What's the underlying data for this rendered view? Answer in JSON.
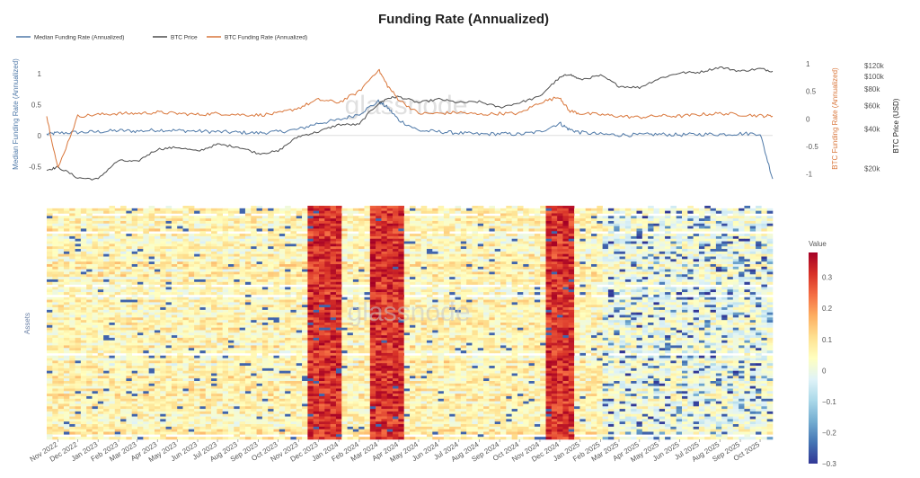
{
  "chart_data": [
    {
      "type": "line",
      "title": "Funding Rate (Annualized)",
      "watermark": "glassnode",
      "grid": false,
      "legend_placement": "top-left",
      "series": [
        {
          "name": "Median Funding Rate (Annualized)",
          "axis": "y_left",
          "color": "#4f79a8",
          "x": [
            "2022-10-15",
            "2022-11-01",
            "2022-12-01",
            "2023-01-01",
            "2023-02-01",
            "2023-03-01",
            "2023-04-01",
            "2023-05-01",
            "2023-06-01",
            "2023-07-01",
            "2023-08-01",
            "2023-09-01",
            "2023-10-01",
            "2023-11-01",
            "2023-12-01",
            "2024-01-01",
            "2024-02-01",
            "2024-03-01",
            "2024-03-15",
            "2024-04-01",
            "2024-05-01",
            "2024-06-01",
            "2024-07-01",
            "2024-08-01",
            "2024-09-01",
            "2024-10-01",
            "2024-11-01",
            "2024-12-01",
            "2024-12-15",
            "2025-01-01",
            "2025-02-01",
            "2025-03-01",
            "2025-04-01",
            "2025-05-01",
            "2025-06-01",
            "2025-07-01",
            "2025-08-01",
            "2025-09-01",
            "2025-10-01",
            "2025-10-20"
          ],
          "y": [
            0.02,
            0.04,
            0.05,
            0.06,
            0.08,
            0.07,
            0.09,
            0.08,
            0.07,
            0.06,
            0.05,
            0.04,
            0.06,
            0.1,
            0.2,
            0.25,
            0.35,
            0.55,
            0.45,
            0.25,
            0.08,
            0.06,
            0.04,
            0.02,
            0.03,
            0.02,
            0.06,
            0.2,
            0.1,
            0.05,
            0.02,
            0.01,
            0.01,
            0.02,
            0.01,
            0.02,
            0.02,
            0.03,
            0.03,
            -0.7
          ]
        },
        {
          "name": "BTC Price",
          "axis": "y_price",
          "color": "#4d4d4d",
          "x": [
            "2022-10-15",
            "2022-11-01",
            "2022-12-01",
            "2023-01-01",
            "2023-02-01",
            "2023-03-01",
            "2023-04-01",
            "2023-05-01",
            "2023-06-01",
            "2023-07-01",
            "2023-08-01",
            "2023-09-01",
            "2023-10-01",
            "2023-11-01",
            "2023-12-01",
            "2024-01-01",
            "2024-02-01",
            "2024-03-01",
            "2024-03-15",
            "2024-04-01",
            "2024-05-01",
            "2024-06-01",
            "2024-07-01",
            "2024-08-01",
            "2024-09-01",
            "2024-10-01",
            "2024-11-01",
            "2024-12-01",
            "2024-12-15",
            "2025-01-01",
            "2025-02-01",
            "2025-03-01",
            "2025-04-01",
            "2025-05-01",
            "2025-06-01",
            "2025-07-01",
            "2025-08-01",
            "2025-09-01",
            "2025-10-01",
            "2025-10-20"
          ],
          "y": [
            19500,
            20500,
            17000,
            16600,
            23000,
            22500,
            28000,
            29000,
            27000,
            30500,
            29200,
            26000,
            27000,
            35000,
            38000,
            43000,
            43000,
            62000,
            68000,
            70000,
            63000,
            67000,
            63000,
            64000,
            58000,
            63000,
            70000,
            97000,
            104000,
            94000,
            101000,
            84000,
            82000,
            96000,
            106000,
            107000,
            117000,
            109000,
            114000,
            109000
          ]
        },
        {
          "name": "BTC Funding Rate (Annualized)",
          "axis": "y_right",
          "color": "#d9763a",
          "x": [
            "2022-10-15",
            "2022-11-01",
            "2022-12-01",
            "2023-01-01",
            "2023-02-01",
            "2023-03-01",
            "2023-04-01",
            "2023-05-01",
            "2023-06-01",
            "2023-07-01",
            "2023-08-01",
            "2023-09-01",
            "2023-10-01",
            "2023-11-01",
            "2023-12-01",
            "2024-01-01",
            "2024-02-01",
            "2024-03-01",
            "2024-03-15",
            "2024-04-01",
            "2024-05-01",
            "2024-06-01",
            "2024-07-01",
            "2024-08-01",
            "2024-09-01",
            "2024-10-01",
            "2024-11-01",
            "2024-12-01",
            "2024-12-15",
            "2025-01-01",
            "2025-02-01",
            "2025-03-01",
            "2025-04-01",
            "2025-05-01",
            "2025-06-01",
            "2025-07-01",
            "2025-08-01",
            "2025-09-01",
            "2025-10-01",
            "2025-10-20"
          ],
          "y": [
            0.05,
            -0.9,
            0.05,
            0.08,
            0.1,
            0.1,
            0.12,
            0.1,
            0.08,
            0.1,
            0.08,
            0.07,
            0.1,
            0.2,
            0.35,
            0.3,
            0.5,
            0.9,
            0.6,
            0.35,
            0.1,
            0.1,
            0.12,
            0.08,
            0.1,
            0.1,
            0.3,
            0.4,
            0.15,
            0.1,
            0.08,
            0.05,
            0.03,
            0.06,
            0.05,
            0.08,
            0.1,
            0.08,
            0.06,
            0.05
          ]
        }
      ],
      "y_left": {
        "label": "Median Funding Rate (Annualized)",
        "ticks": [
          1,
          0.5,
          0,
          -0.5
        ],
        "range": [
          -0.8,
          1.2
        ]
      },
      "y_right": {
        "label": "BTC Funding Rate (Annualized)",
        "ticks": [
          1,
          0.5,
          0,
          -0.5,
          -1
        ],
        "range": [
          -1.2,
          1.05
        ]
      },
      "y_price": {
        "label": "BTC Price (USD)",
        "scale": "log",
        "ticks": [
          "$120k",
          "$100k",
          "$80k",
          "$60k",
          "$40k",
          "$20k"
        ],
        "tick_values": [
          120000,
          100000,
          80000,
          60000,
          40000,
          20000
        ],
        "range": [
          15000,
          130000
        ]
      }
    },
    {
      "type": "heatmap",
      "ylabel": "Assets",
      "x_range": [
        "2022-10-15",
        "2025-10-20"
      ],
      "x_ticks": [
        "Nov 2022",
        "Dec 2022",
        "Jan 2023",
        "Feb 2023",
        "Mar 2023",
        "Apr 2023",
        "May 2023",
        "Jun 2023",
        "Jul 2023",
        "Aug 2023",
        "Sep 2023",
        "Oct 2023",
        "Nov 2023",
        "Dec 2023",
        "Jan 2024",
        "Feb 2024",
        "Mar 2024",
        "Apr 2024",
        "May 2024",
        "Jun 2024",
        "Jul 2024",
        "Aug 2024",
        "Sep 2024",
        "Oct 2024",
        "Nov 2024",
        "Dec 2024",
        "Jan 2025",
        "Feb 2025",
        "Mar 2025",
        "Apr 2025",
        "May 2025",
        "Jun 2025",
        "Jul 2025",
        "Aug 2025",
        "Sep 2025",
        "Oct 2025"
      ],
      "colorbar": {
        "title": "Value",
        "min": -0.3,
        "max": 0.38,
        "ticks": [
          "0.3",
          "0.2",
          "0.1",
          "0",
          "−0.1",
          "−0.2",
          "−0.3"
        ],
        "tick_values": [
          0.3,
          0.2,
          0.1,
          0,
          -0.1,
          -0.2,
          -0.3
        ],
        "colorscale": [
          "#313695",
          "#4575b4",
          "#74add1",
          "#abd9e9",
          "#e0f3f8",
          "#ffffbf",
          "#fee090",
          "#fdae61",
          "#f46d43",
          "#d73027",
          "#a50026"
        ]
      },
      "high_periods": [
        {
          "start": "2023-11-15",
          "end": "2024-01-01"
        },
        {
          "start": "2024-02-15",
          "end": "2024-04-05"
        },
        {
          "start": "2024-11-08",
          "end": "2024-12-20"
        }
      ]
    }
  ]
}
